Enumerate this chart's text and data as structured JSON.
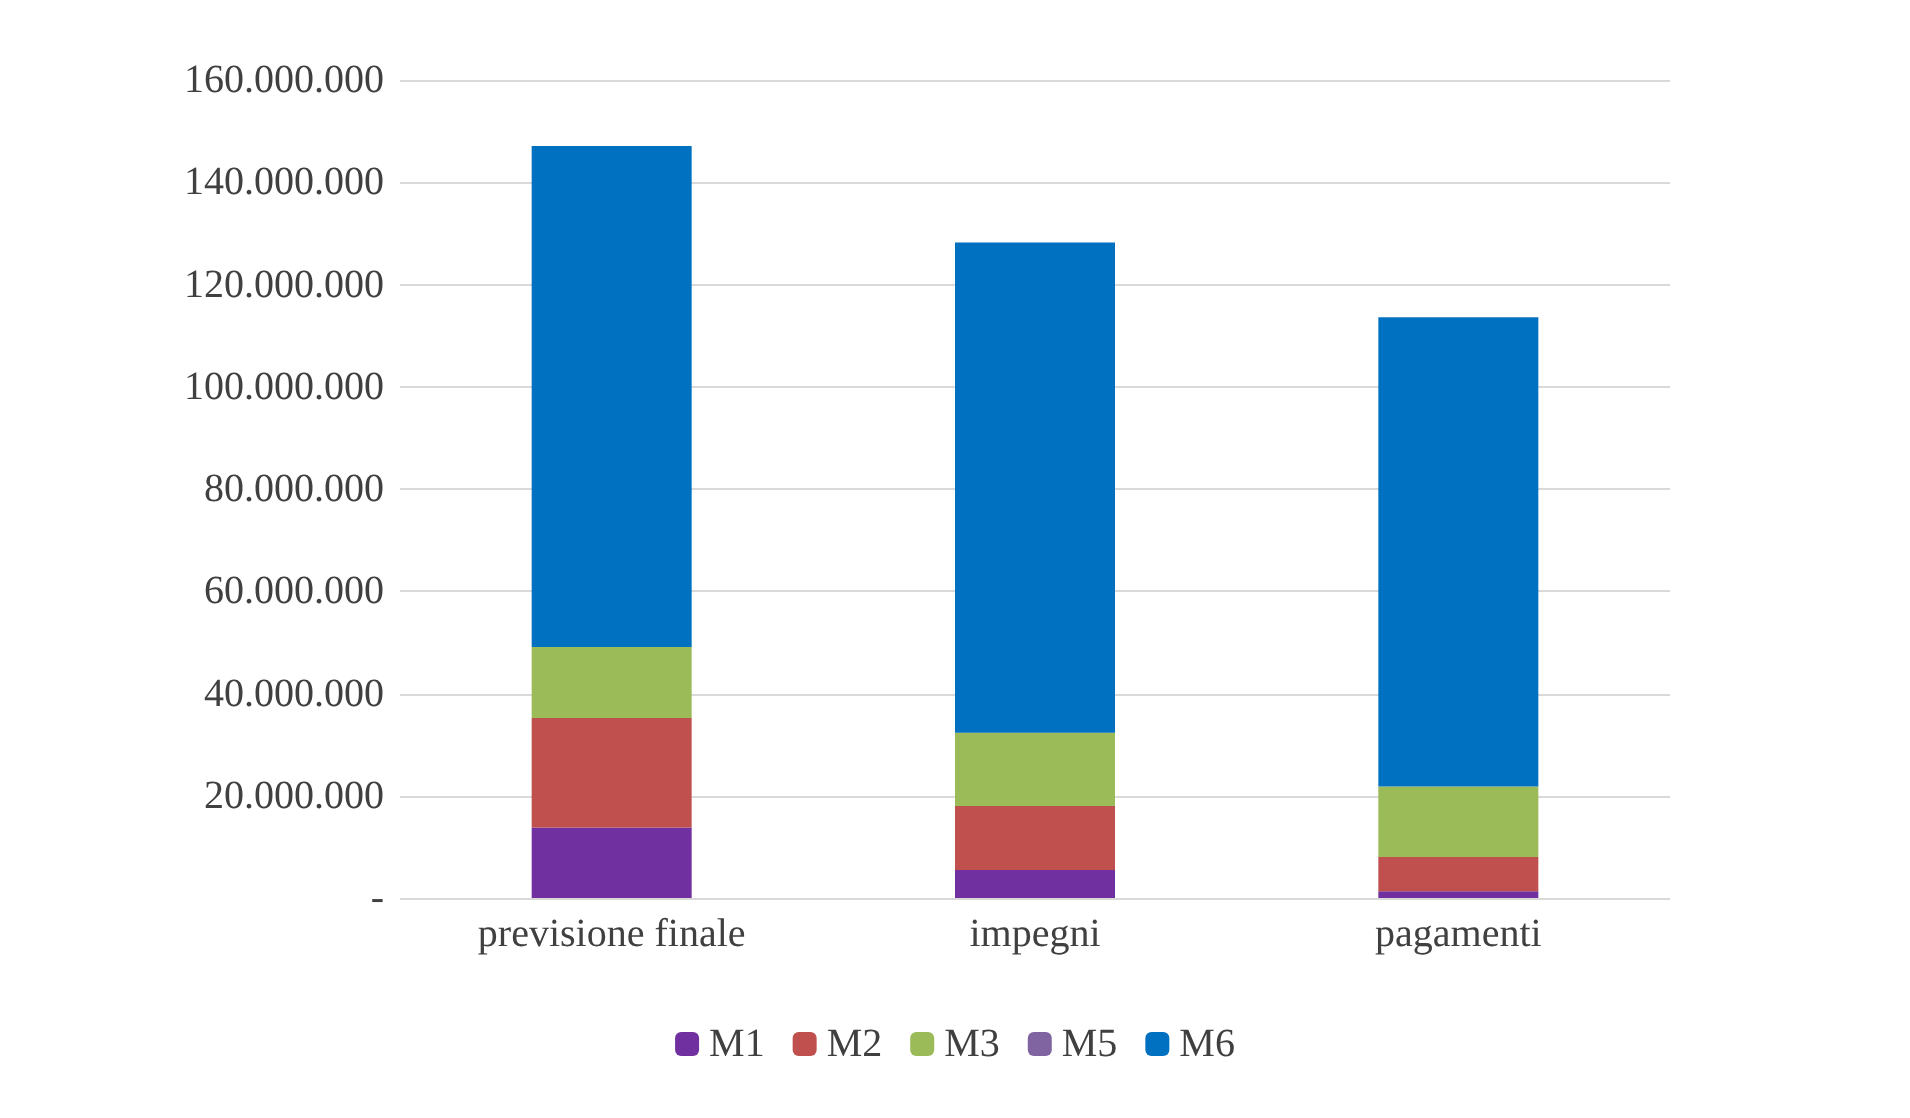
{
  "chart_data": {
    "type": "bar",
    "stacked": true,
    "categories": [
      "previsione finale",
      "impegni",
      "pagamenti"
    ],
    "series": [
      {
        "name": "M1",
        "color": "#7030a0",
        "values": [
          13800000,
          5500000,
          1300000
        ]
      },
      {
        "name": "M2",
        "color": "#c0504d",
        "values": [
          21400000,
          12500000,
          6700000
        ]
      },
      {
        "name": "M3",
        "color": "#9bbb59",
        "values": [
          13900000,
          14300000,
          13800000
        ]
      },
      {
        "name": "M5",
        "color": "#8064a2",
        "values": [
          0,
          0,
          0
        ]
      },
      {
        "name": "M6",
        "color": "#0070c0",
        "values": [
          98000000,
          95900000,
          91800000
        ]
      }
    ],
    "ylim": [
      0,
      160000000
    ],
    "yticks": [
      {
        "value": 0,
        "label": "-"
      },
      {
        "value": 20000000,
        "label": "20.000.000"
      },
      {
        "value": 40000000,
        "label": "40.000.000"
      },
      {
        "value": 60000000,
        "label": "60.000.000"
      },
      {
        "value": 80000000,
        "label": "80.000.000"
      },
      {
        "value": 100000000,
        "label": "100.000.000"
      },
      {
        "value": 120000000,
        "label": "120.000.000"
      },
      {
        "value": 140000000,
        "label": "140.000.000"
      },
      {
        "value": 160000000,
        "label": "160.000.000"
      }
    ],
    "grid": "y",
    "legend": "bottom"
  }
}
